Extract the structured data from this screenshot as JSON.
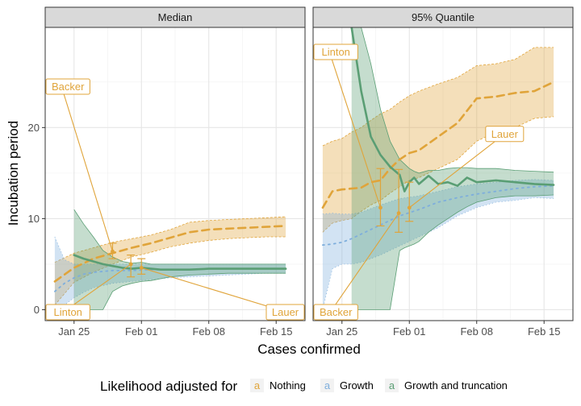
{
  "chart_data": {
    "type": "line",
    "xlabel": "Cases confirmed",
    "ylabel": "Incubation period",
    "x_ticks": [
      "Jan 25",
      "Feb 01",
      "Feb 08",
      "Feb 15"
    ],
    "x_tick_days": [
      0,
      7,
      14,
      21
    ],
    "y_ticks": [
      "0",
      "10",
      "20"
    ],
    "y_tick_values": [
      0,
      10,
      20
    ],
    "x_range_days": [
      -3,
      24
    ],
    "y_range": [
      -1.2,
      31
    ],
    "legend": {
      "title": "Likelihood adjusted for",
      "position": "bottom",
      "key_glyph": "a",
      "items": [
        {
          "label": "Nothing",
          "color": "#E0A43A"
        },
        {
          "label": "Growth",
          "color": "#7EAEDC"
        },
        {
          "label": "Growth and truncation",
          "color": "#5A9E74"
        }
      ]
    },
    "panels": [
      {
        "title": "Median",
        "series": [
          {
            "name": "Nothing",
            "x": [
              -2,
              0,
              2,
              4,
              6,
              8,
              10,
              12,
              14,
              16,
              18,
              20,
              22
            ],
            "y": [
              3.1,
              4.6,
              5.6,
              6.2,
              6.8,
              7.3,
              7.9,
              8.5,
              8.8,
              8.9,
              9.0,
              9.1,
              9.2
            ],
            "lower": [
              0.5,
              3.0,
              4.1,
              5.0,
              5.8,
              6.3,
              6.9,
              7.3,
              7.6,
              7.8,
              7.9,
              8.0,
              8.0
            ],
            "upper": [
              5.2,
              6.2,
              6.8,
              7.4,
              7.8,
              8.2,
              8.8,
              9.6,
              9.8,
              9.9,
              10.0,
              10.1,
              10.2
            ]
          },
          {
            "name": "Growth",
            "x": [
              -2,
              -1,
              0,
              1,
              2,
              4,
              6,
              8,
              10,
              12,
              14,
              16,
              18,
              20,
              22
            ],
            "y": [
              2.0,
              2.9,
              3.5,
              3.9,
              4.1,
              4.3,
              4.3,
              4.4,
              4.4,
              4.4,
              4.5,
              4.5,
              4.5,
              4.5,
              4.5
            ],
            "lower": [
              0.0,
              0.5,
              1.3,
              1.9,
              2.4,
              2.9,
              3.1,
              3.3,
              3.5,
              3.6,
              3.7,
              3.8,
              3.9,
              4.0,
              4.0
            ],
            "upper": [
              8.0,
              5.5,
              5.0,
              5.0,
              5.0,
              5.0,
              5.0,
              5.0,
              5.0,
              5.0,
              5.0,
              5.0,
              5.0,
              5.0,
              5.0
            ]
          },
          {
            "name": "Growth and truncation",
            "x": [
              0,
              1,
              2,
              3,
              4,
              5,
              6,
              7,
              8,
              9,
              10,
              12,
              14,
              16,
              18,
              20,
              22
            ],
            "y": [
              6.0,
              5.6,
              5.3,
              5.0,
              4.8,
              4.6,
              4.5,
              4.6,
              4.5,
              4.4,
              4.4,
              4.4,
              4.5,
              4.5,
              4.5,
              4.5,
              4.5
            ],
            "lower": [
              0.0,
              0.0,
              0.0,
              0.0,
              2.0,
              2.6,
              2.9,
              3.1,
              3.2,
              3.4,
              3.6,
              3.8,
              3.9,
              4.0,
              4.0,
              4.0,
              4.0
            ],
            "upper": [
              11.0,
              9.4,
              8.0,
              6.5,
              5.8,
              5.3,
              5.1,
              5.2,
              5.0,
              5.0,
              5.0,
              5.0,
              5.0,
              5.0,
              5.0,
              5.0,
              5.0
            ]
          }
        ],
        "studies": [
          {
            "label": "Backer",
            "x": 4.0,
            "y": 6.4,
            "lower": 5.6,
            "upper": 7.3,
            "label_x": -1.3,
            "label_y": 24.5
          },
          {
            "label": "Linton",
            "x": 5.9,
            "y": 5.0,
            "lower": 3.6,
            "upper": 6.0,
            "label_x": -1.3,
            "label_y": -0.4
          },
          {
            "label": "Lauer",
            "x": 7.0,
            "y": 4.6,
            "lower": 3.9,
            "upper": 5.6,
            "label_x": 22.5,
            "label_y": -0.4
          }
        ]
      },
      {
        "title": "95% Quantile",
        "series": [
          {
            "name": "Nothing",
            "x": [
              -2,
              -1,
              0,
              1,
              2,
              3,
              4,
              5,
              6,
              7,
              8,
              10,
              12,
              14,
              16,
              18,
              20,
              22
            ],
            "y": [
              11.2,
              13.0,
              13.2,
              13.3,
              13.4,
              14.0,
              14.2,
              15.5,
              16.5,
              17.2,
              17.5,
              19.0,
              20.5,
              23.2,
              23.4,
              23.8,
              24.0,
              25.0
            ],
            "lower": [
              8.5,
              9.5,
              9.8,
              10.0,
              10.8,
              11.5,
              12.0,
              12.8,
              13.5,
              14.2,
              14.5,
              15.5,
              16.5,
              18.5,
              19.5,
              20.0,
              21.0,
              21.2
            ],
            "upper": [
              18.0,
              18.5,
              18.8,
              19.5,
              20.0,
              20.8,
              21.5,
              22.0,
              22.8,
              23.5,
              24.0,
              24.8,
              25.5,
              26.8,
              27.0,
              27.5,
              28.8,
              28.8
            ]
          },
          {
            "name": "Growth",
            "x": [
              -2,
              -1,
              0,
              1,
              2,
              4,
              6,
              8,
              10,
              12,
              14,
              16,
              18,
              20,
              22
            ],
            "y": [
              7.1,
              7.2,
              7.4,
              7.8,
              8.3,
              9.3,
              10.3,
              11.0,
              11.8,
              12.3,
              12.7,
              13.0,
              13.3,
              13.5,
              13.6
            ],
            "lower": [
              0.0,
              4.5,
              5.0,
              5.0,
              5.2,
              6.0,
              7.0,
              8.0,
              9.0,
              10.3,
              11.2,
              11.8,
              12.0,
              12.3,
              12.2
            ],
            "upper": [
              10.5,
              10.6,
              10.5,
              10.5,
              10.7,
              11.5,
              12.2,
              12.5,
              13.0,
              13.5,
              13.8,
              14.0,
              14.2,
              14.3,
              14.2
            ]
          },
          {
            "name": "Growth and truncation",
            "x": [
              1,
              2,
              3,
              4,
              5,
              6,
              6.5,
              7,
              7.5,
              8,
              9,
              10,
              11,
              12,
              13,
              14,
              16,
              18,
              20,
              22
            ],
            "y": [
              31.0,
              24.0,
              19.0,
              17.0,
              15.7,
              14.8,
              13.0,
              14.0,
              14.5,
              13.8,
              14.7,
              13.8,
              14.0,
              13.6,
              14.5,
              14.0,
              14.2,
              14.0,
              13.8,
              13.7
            ],
            "lower": [
              0.0,
              0.0,
              0.0,
              0.0,
              0.0,
              6.5,
              6.8,
              7.0,
              7.2,
              7.5,
              8.5,
              9.3,
              10.0,
              10.7,
              11.3,
              11.8,
              12.3,
              12.5,
              12.5,
              12.6
            ],
            "upper": [
              31.0,
              31.0,
              27.0,
              22.0,
              18.5,
              16.5,
              16.0,
              15.5,
              15.2,
              15.0,
              15.3,
              15.3,
              15.5,
              15.6,
              15.6,
              15.5,
              15.5,
              15.3,
              15.2,
              15.1
            ]
          }
        ],
        "studies": [
          {
            "label": "Linton",
            "x": 4.0,
            "y": 11.2,
            "lower": 9.2,
            "upper": 15.5,
            "label_x": -1.3,
            "label_y": 28.3
          },
          {
            "label": "Backer",
            "x": 5.9,
            "y": 10.6,
            "lower": 8.5,
            "upper": 15.4,
            "label_x": -1.3,
            "label_y": -0.4
          },
          {
            "label": "Lauer",
            "x": 7.0,
            "y": 11.2,
            "lower": 9.7,
            "upper": 14.0,
            "label_x": 16.9,
            "label_y": 19.3
          }
        ]
      }
    ]
  }
}
